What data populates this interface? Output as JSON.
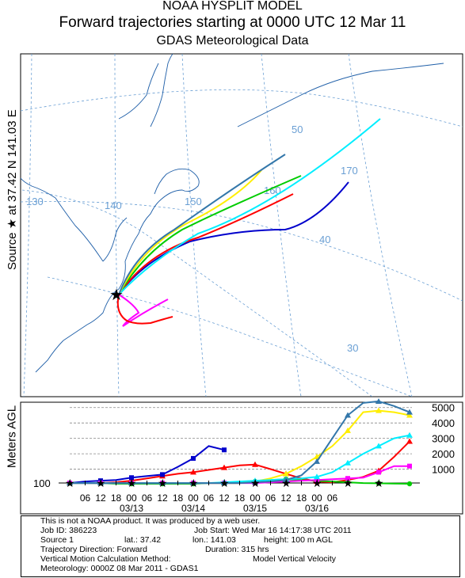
{
  "header": {
    "line1": "NOAA HYSPLIT MODEL",
    "line2": "Forward trajectories starting at 0000 UTC 12 Mar 11",
    "line3": "GDAS Meteorological Data"
  },
  "side_label_source": "Source ★ at   37.42 N  141.03 E",
  "side_label_agl": "Meters AGL",
  "map": {
    "lat_labels": [
      "50",
      "40",
      "30"
    ],
    "lon_labels": [
      "130",
      "140",
      "150",
      "160",
      "170"
    ]
  },
  "chart_data": {
    "type": "line",
    "title": "Forward trajectories starting at 0000 UTC 12 Mar 11",
    "xlabel": "",
    "ylabel": "Meters AGL",
    "x_ticks": [
      "06",
      "12",
      "18",
      "00",
      "06",
      "12",
      "18",
      "00",
      "06",
      "12",
      "18",
      "00",
      "06",
      "12",
      "18",
      "00",
      "06"
    ],
    "date_labels": [
      "03/13",
      "03/14",
      "03/15",
      "03/16"
    ],
    "y_ticks": [
      "5000",
      "4000",
      "3000",
      "2000",
      "1000",
      "100"
    ],
    "ylim": [
      0,
      5500
    ],
    "start_height_m": 100,
    "series": [
      {
        "color": "#ff0000",
        "marker": "triangle",
        "hours": [
          0,
          6,
          12,
          18,
          24,
          30,
          36,
          42,
          48,
          54,
          60,
          66,
          72,
          78,
          84,
          90,
          96,
          102,
          108,
          114,
          120,
          126,
          132
        ],
        "values": [
          100,
          100,
          100,
          150,
          250,
          400,
          550,
          700,
          800,
          950,
          1100,
          1250,
          1300,
          1000,
          700,
          400,
          200,
          150,
          300,
          500,
          900,
          1800,
          2800
        ]
      },
      {
        "color": "#0000cc",
        "marker": "square",
        "hours": [
          0,
          6,
          12,
          18,
          24,
          30,
          36,
          42,
          48,
          54,
          60
        ],
        "values": [
          100,
          200,
          250,
          300,
          450,
          550,
          650,
          1150,
          1700,
          2500,
          2250
        ]
      },
      {
        "color": "#00cc00",
        "marker": "circle",
        "hours": [
          0,
          6,
          12,
          18,
          24,
          30,
          36,
          42,
          48,
          54,
          60,
          66,
          72,
          78,
          84,
          90,
          96,
          102,
          108,
          114,
          120,
          126,
          132
        ],
        "values": [
          100,
          100,
          100,
          50,
          50,
          50,
          50,
          50,
          50,
          100,
          100,
          100,
          200,
          300,
          350,
          300,
          250,
          200,
          150,
          100,
          80,
          60,
          50
        ]
      },
      {
        "color": "#ffee00",
        "marker": "triangle",
        "hours": [
          0,
          6,
          12,
          18,
          24,
          30,
          36,
          42,
          48,
          54,
          60,
          66,
          72,
          78,
          84,
          90,
          96,
          102,
          108,
          114,
          120,
          126,
          132
        ],
        "values": [
          100,
          100,
          100,
          100,
          100,
          100,
          100,
          100,
          100,
          100,
          100,
          100,
          200,
          400,
          700,
          1200,
          1800,
          2500,
          3500,
          4700,
          4800,
          4700,
          4500
        ]
      },
      {
        "color": "#ff00ff",
        "marker": "square",
        "hours": [
          0,
          6,
          12,
          18,
          24,
          30,
          36,
          42,
          48,
          54,
          60,
          66,
          72,
          78,
          84,
          90,
          96,
          102,
          108,
          114,
          120,
          126,
          132
        ],
        "values": [
          100,
          100,
          100,
          100,
          100,
          100,
          100,
          100,
          100,
          100,
          100,
          100,
          100,
          150,
          200,
          250,
          300,
          350,
          400,
          450,
          800,
          1200,
          1200
        ]
      },
      {
        "color": "#00eeff",
        "marker": "triangle",
        "hours": [
          0,
          6,
          12,
          18,
          24,
          30,
          36,
          42,
          48,
          54,
          60,
          66,
          72,
          78,
          84,
          90,
          96,
          102,
          108,
          114,
          120,
          126,
          132
        ],
        "values": [
          100,
          100,
          100,
          100,
          100,
          100,
          100,
          100,
          100,
          100,
          150,
          200,
          250,
          300,
          350,
          400,
          500,
          800,
          1400,
          2000,
          2500,
          3000,
          3200
        ]
      },
      {
        "color": "#3377aa",
        "marker": "triangle",
        "hours": [
          0,
          6,
          12,
          18,
          24,
          30,
          36,
          42,
          48,
          54,
          60,
          66,
          72,
          78,
          84,
          90,
          96,
          102,
          108,
          114,
          120,
          126,
          132
        ],
        "values": [
          100,
          100,
          100,
          100,
          100,
          100,
          100,
          100,
          100,
          100,
          100,
          100,
          150,
          200,
          300,
          600,
          1500,
          3000,
          4500,
          5300,
          5400,
          5100,
          4700
        ]
      }
    ]
  },
  "footer": {
    "line1": "This is not a NOAA product. It was produced by a web user.",
    "line2a": "Job ID: 386223",
    "line2b": "Job Start: Wed Mar 16 14:17:38 UTC 2011",
    "line3a": "Source 1",
    "line3b": "lat.: 37.42",
    "line3c": "lon.: 141.03",
    "line3d": "height: 100 m AGL",
    "line4a": "Trajectory Direction: Forward",
    "line4b": "Duration: 315 hrs",
    "line5a": "Vertical Motion Calculation Method:",
    "line5b": "Model Vertical Velocity",
    "line6": "Meteorology: 0000Z 08 Mar 2011 - GDAS1"
  }
}
